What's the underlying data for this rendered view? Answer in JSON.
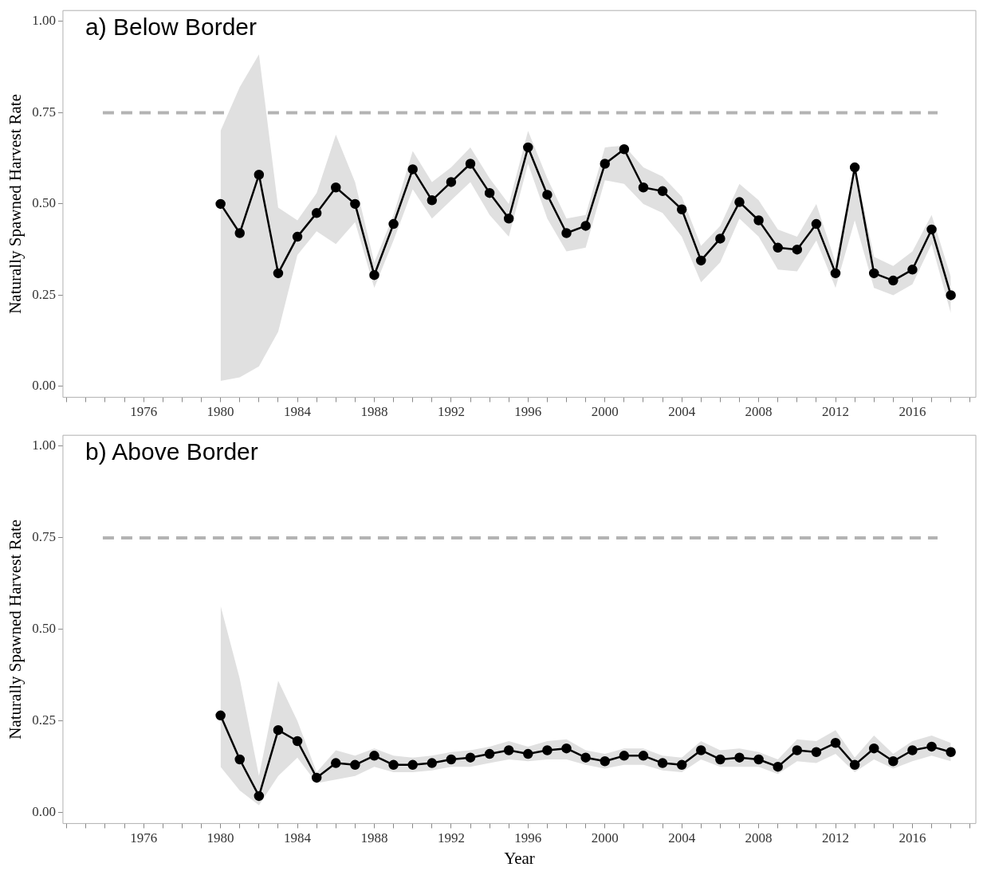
{
  "chart_data": [
    {
      "type": "line",
      "title": "a) Below Border",
      "ylabel": "Naturally Spawned Harvest Rate",
      "xlim": [
        1971.8,
        2019.3
      ],
      "ylim": [
        -0.03,
        1.03
      ],
      "xticks": [
        {
          "value": 1972,
          "label": null
        },
        {
          "value": 1973,
          "label": null
        },
        {
          "value": 1974,
          "label": null
        },
        {
          "value": 1975,
          "label": null
        },
        1976,
        {
          "value": 1977,
          "label": null
        },
        {
          "value": 1978,
          "label": null
        },
        {
          "value": 1979,
          "label": null
        },
        1980,
        {
          "value": 1981,
          "label": null
        },
        {
          "value": 1982,
          "label": null
        },
        {
          "value": 1983,
          "label": null
        },
        1984,
        {
          "value": 1985,
          "label": null
        },
        {
          "value": 1986,
          "label": null
        },
        {
          "value": 1987,
          "label": null
        },
        1988,
        {
          "value": 1989,
          "label": null
        },
        {
          "value": 1990,
          "label": null
        },
        {
          "value": 1991,
          "label": null
        },
        1992,
        {
          "value": 1993,
          "label": null
        },
        {
          "value": 1994,
          "label": null
        },
        {
          "value": 1995,
          "label": null
        },
        1996,
        {
          "value": 1997,
          "label": null
        },
        {
          "value": 1998,
          "label": null
        },
        {
          "value": 1999,
          "label": null
        },
        2000,
        {
          "value": 2001,
          "label": null
        },
        {
          "value": 2002,
          "label": null
        },
        {
          "value": 2003,
          "label": null
        },
        2004,
        {
          "value": 2005,
          "label": null
        },
        {
          "value": 2006,
          "label": null
        },
        {
          "value": 2007,
          "label": null
        },
        2008,
        {
          "value": 2009,
          "label": null
        },
        {
          "value": 2010,
          "label": null
        },
        {
          "value": 2011,
          "label": null
        },
        2012,
        {
          "value": 2013,
          "label": null
        },
        {
          "value": 2014,
          "label": null
        },
        {
          "value": 2015,
          "label": null
        },
        2016,
        {
          "value": 2017,
          "label": null
        },
        {
          "value": 2018,
          "label": null
        },
        {
          "value": 2019,
          "label": null
        }
      ],
      "yticks": [
        {
          "value": 0,
          "label": "0.00"
        },
        {
          "value": 0.25,
          "label": "0.25"
        },
        {
          "value": 0.5,
          "label": "0.50"
        },
        {
          "value": 0.75,
          "label": "0.75"
        },
        {
          "value": 1,
          "label": "1.00"
        }
      ],
      "x": [
        1980,
        1981,
        1982,
        1983,
        1984,
        1985,
        1986,
        1987,
        1988,
        1989,
        1990,
        1991,
        1992,
        1993,
        1994,
        1995,
        1996,
        1997,
        1998,
        1999,
        2000,
        2001,
        2002,
        2003,
        2004,
        2005,
        2006,
        2007,
        2008,
        2009,
        2010,
        2011,
        2012,
        2013,
        2014,
        2015,
        2016,
        2017,
        2018
      ],
      "series": [
        {
          "color": "#000000",
          "values": [
            0.5,
            0.42,
            0.58,
            0.31,
            0.41,
            0.475,
            0.545,
            0.5,
            0.305,
            0.445,
            0.595,
            0.51,
            0.56,
            0.61,
            0.53,
            0.46,
            0.655,
            0.525,
            0.42,
            0.44,
            0.61,
            0.65,
            0.545,
            0.535,
            0.485,
            0.345,
            0.405,
            0.505,
            0.455,
            0.38,
            0.375,
            0.445,
            0.31,
            0.6,
            0.31,
            0.29,
            0.32,
            0.43,
            0.25
          ],
          "lower": [
            0.015,
            0.025,
            0.055,
            0.15,
            0.36,
            0.425,
            0.39,
            0.45,
            0.27,
            0.4,
            0.54,
            0.46,
            0.51,
            0.56,
            0.47,
            0.41,
            0.61,
            0.46,
            0.37,
            0.38,
            0.565,
            0.555,
            0.5,
            0.475,
            0.41,
            0.285,
            0.34,
            0.46,
            0.41,
            0.32,
            0.315,
            0.4,
            0.27,
            0.455,
            0.27,
            0.25,
            0.28,
            0.39,
            0.2
          ],
          "upper": [
            0.7,
            0.82,
            0.91,
            0.49,
            0.455,
            0.53,
            0.69,
            0.56,
            0.34,
            0.47,
            0.645,
            0.56,
            0.6,
            0.655,
            0.57,
            0.5,
            0.7,
            0.57,
            0.46,
            0.47,
            0.655,
            0.66,
            0.6,
            0.575,
            0.52,
            0.385,
            0.44,
            0.555,
            0.51,
            0.43,
            0.41,
            0.5,
            0.34,
            0.61,
            0.355,
            0.33,
            0.37,
            0.47,
            0.3
          ]
        }
      ],
      "ref_lines": [
        {
          "axis": "y",
          "value": 0.75,
          "color": "#b3b3b3",
          "line_style": "dashed"
        }
      ],
      "marker": "circle",
      "line_style": "solid",
      "grid": false,
      "legend": false
    },
    {
      "type": "line",
      "title": "b) Above Border",
      "xlabel": "Year",
      "ylabel": "Naturally Spawned Harvest Rate",
      "xlim": [
        1971.8,
        2019.3
      ],
      "ylim": [
        -0.03,
        1.03
      ],
      "xticks": [
        {
          "value": 1972,
          "label": null
        },
        {
          "value": 1973,
          "label": null
        },
        {
          "value": 1974,
          "label": null
        },
        {
          "value": 1975,
          "label": null
        },
        1976,
        {
          "value": 1977,
          "label": null
        },
        {
          "value": 1978,
          "label": null
        },
        {
          "value": 1979,
          "label": null
        },
        1980,
        {
          "value": 1981,
          "label": null
        },
        {
          "value": 1982,
          "label": null
        },
        {
          "value": 1983,
          "label": null
        },
        1984,
        {
          "value": 1985,
          "label": null
        },
        {
          "value": 1986,
          "label": null
        },
        {
          "value": 1987,
          "label": null
        },
        1988,
        {
          "value": 1989,
          "label": null
        },
        {
          "value": 1990,
          "label": null
        },
        {
          "value": 1991,
          "label": null
        },
        1992,
        {
          "value": 1993,
          "label": null
        },
        {
          "value": 1994,
          "label": null
        },
        {
          "value": 1995,
          "label": null
        },
        1996,
        {
          "value": 1997,
          "label": null
        },
        {
          "value": 1998,
          "label": null
        },
        {
          "value": 1999,
          "label": null
        },
        2000,
        {
          "value": 2001,
          "label": null
        },
        {
          "value": 2002,
          "label": null
        },
        {
          "value": 2003,
          "label": null
        },
        2004,
        {
          "value": 2005,
          "label": null
        },
        {
          "value": 2006,
          "label": null
        },
        {
          "value": 2007,
          "label": null
        },
        2008,
        {
          "value": 2009,
          "label": null
        },
        {
          "value": 2010,
          "label": null
        },
        {
          "value": 2011,
          "label": null
        },
        2012,
        {
          "value": 2013,
          "label": null
        },
        {
          "value": 2014,
          "label": null
        },
        {
          "value": 2015,
          "label": null
        },
        2016,
        {
          "value": 2017,
          "label": null
        },
        {
          "value": 2018,
          "label": null
        },
        {
          "value": 2019,
          "label": null
        }
      ],
      "yticks": [
        {
          "value": 0,
          "label": "0.00"
        },
        {
          "value": 0.25,
          "label": "0.25"
        },
        {
          "value": 0.5,
          "label": "0.50"
        },
        {
          "value": 0.75,
          "label": "0.75"
        },
        {
          "value": 1,
          "label": "1.00"
        }
      ],
      "x": [
        1980,
        1981,
        1982,
        1983,
        1984,
        1985,
        1986,
        1987,
        1988,
        1989,
        1990,
        1991,
        1992,
        1993,
        1994,
        1995,
        1996,
        1997,
        1998,
        1999,
        2000,
        2001,
        2002,
        2003,
        2004,
        2005,
        2006,
        2007,
        2008,
        2009,
        2010,
        2011,
        2012,
        2013,
        2014,
        2015,
        2016,
        2017,
        2018
      ],
      "series": [
        {
          "color": "#000000",
          "values": [
            0.265,
            0.145,
            0.045,
            0.225,
            0.195,
            0.095,
            0.135,
            0.13,
            0.155,
            0.13,
            0.13,
            0.135,
            0.145,
            0.15,
            0.16,
            0.17,
            0.16,
            0.17,
            0.175,
            0.15,
            0.14,
            0.155,
            0.155,
            0.135,
            0.13,
            0.17,
            0.145,
            0.15,
            0.145,
            0.125,
            0.17,
            0.165,
            0.19,
            0.13,
            0.175,
            0.14,
            0.17,
            0.18,
            0.165
          ],
          "lower": [
            0.125,
            0.06,
            0.02,
            0.1,
            0.15,
            0.08,
            0.09,
            0.1,
            0.125,
            0.11,
            0.11,
            0.115,
            0.125,
            0.125,
            0.135,
            0.145,
            0.14,
            0.145,
            0.145,
            0.13,
            0.12,
            0.13,
            0.13,
            0.115,
            0.11,
            0.145,
            0.125,
            0.125,
            0.125,
            0.105,
            0.14,
            0.135,
            0.16,
            0.11,
            0.145,
            0.12,
            0.14,
            0.155,
            0.14
          ],
          "upper": [
            0.565,
            0.365,
            0.1,
            0.36,
            0.25,
            0.11,
            0.17,
            0.155,
            0.175,
            0.155,
            0.15,
            0.155,
            0.165,
            0.17,
            0.18,
            0.195,
            0.18,
            0.195,
            0.2,
            0.17,
            0.16,
            0.175,
            0.175,
            0.155,
            0.15,
            0.195,
            0.17,
            0.175,
            0.165,
            0.145,
            0.2,
            0.195,
            0.225,
            0.15,
            0.21,
            0.16,
            0.195,
            0.21,
            0.19
          ]
        }
      ],
      "ref_lines": [
        {
          "axis": "y",
          "value": 0.75,
          "color": "#b3b3b3",
          "line_style": "dashed"
        }
      ],
      "marker": "circle",
      "line_style": "solid",
      "grid": false,
      "legend": false
    }
  ]
}
